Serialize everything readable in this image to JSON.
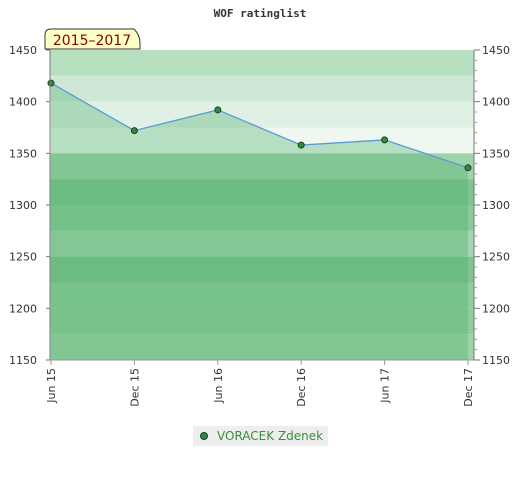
{
  "chart_data": {
    "type": "area",
    "title": "WOF ratinglist",
    "badge": "2015–2017",
    "xlabel": "",
    "ylabel": "",
    "categories": [
      "Jun 15",
      "Dec 15",
      "Jun 16",
      "Dec 16",
      "Jun 17",
      "Dec 17"
    ],
    "series": [
      {
        "name": "VORACEK Zdenek",
        "values": [
          1418,
          1372,
          1392,
          1358,
          1363,
          1336
        ]
      }
    ],
    "ylim": [
      1150,
      1450
    ],
    "yticks": [
      1150,
      1200,
      1250,
      1300,
      1350,
      1400,
      1450
    ],
    "right_axis": true,
    "grid": true,
    "legend_position": "bottom",
    "colors": {
      "line": "#5b9bd5",
      "marker": "#2e8b3f",
      "marker_stroke": "#1f3f25",
      "badge_fill": "#ffffc8",
      "legend_bg": "#eeeeee"
    }
  }
}
